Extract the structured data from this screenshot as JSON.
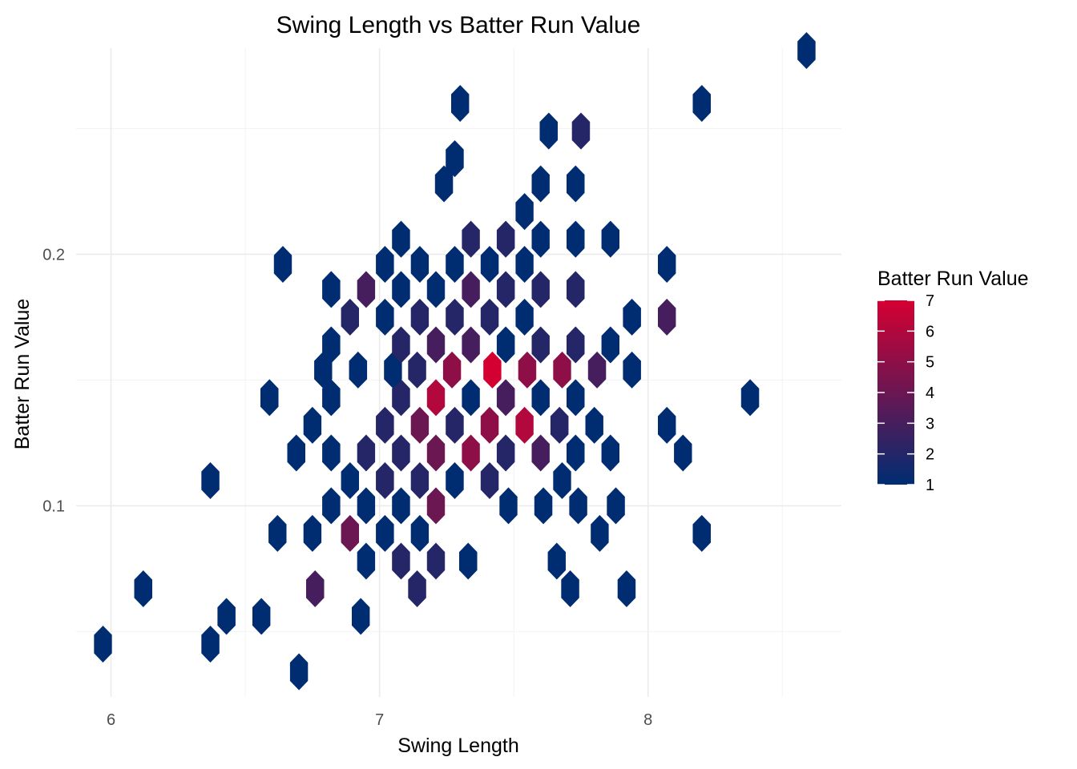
{
  "chart_data": {
    "type": "heatmap",
    "subtype": "hexbin",
    "title": "Swing Length vs Batter Run Value",
    "xlabel": "Swing Length",
    "ylabel": "Batter Run Value",
    "xlim": [
      5.87,
      8.72
    ],
    "ylim": [
      0.024,
      0.282
    ],
    "x_ticks": [
      6,
      7,
      8
    ],
    "x_tick_labels": [
      "6",
      "7",
      "8"
    ],
    "y_ticks": [
      0.1,
      0.2
    ],
    "y_tick_labels": [
      "0.1",
      "0.2"
    ],
    "grid": true,
    "hex_dx": 0.0652,
    "hex_dy": 0.0108,
    "bins": [
      [
        5.97,
        0.045,
        1
      ],
      [
        6.37,
        0.045,
        1
      ],
      [
        6.7,
        0.034,
        1
      ],
      [
        6.12,
        0.067,
        1
      ],
      [
        6.43,
        0.056,
        1
      ],
      [
        6.56,
        0.056,
        1
      ],
      [
        6.93,
        0.056,
        1
      ],
      [
        6.76,
        0.067,
        3
      ],
      [
        7.33,
        0.078,
        1
      ],
      [
        7.66,
        0.078,
        1
      ],
      [
        7.71,
        0.067,
        1
      ],
      [
        7.92,
        0.067,
        1
      ],
      [
        6.95,
        0.078,
        1
      ],
      [
        7.08,
        0.078,
        2
      ],
      [
        7.21,
        0.078,
        2
      ],
      [
        7.14,
        0.067,
        2
      ],
      [
        6.62,
        0.089,
        1
      ],
      [
        6.75,
        0.089,
        1
      ],
      [
        6.89,
        0.089,
        4
      ],
      [
        7.02,
        0.089,
        1
      ],
      [
        7.15,
        0.089,
        1
      ],
      [
        7.82,
        0.089,
        1
      ],
      [
        8.2,
        0.089,
        1
      ],
      [
        6.82,
        0.1,
        1
      ],
      [
        6.95,
        0.1,
        1
      ],
      [
        7.08,
        0.1,
        1
      ],
      [
        7.21,
        0.1,
        4
      ],
      [
        7.48,
        0.1,
        1
      ],
      [
        7.61,
        0.1,
        1
      ],
      [
        7.74,
        0.1,
        1
      ],
      [
        7.88,
        0.1,
        1
      ],
      [
        6.37,
        0.11,
        1
      ],
      [
        6.89,
        0.11,
        1
      ],
      [
        7.02,
        0.11,
        2
      ],
      [
        7.15,
        0.11,
        2
      ],
      [
        7.28,
        0.11,
        1
      ],
      [
        7.41,
        0.11,
        2
      ],
      [
        7.68,
        0.11,
        1
      ],
      [
        6.69,
        0.121,
        1
      ],
      [
        6.82,
        0.121,
        1
      ],
      [
        6.95,
        0.121,
        2
      ],
      [
        7.08,
        0.121,
        2
      ],
      [
        7.21,
        0.121,
        4
      ],
      [
        7.34,
        0.121,
        5
      ],
      [
        7.47,
        0.121,
        2
      ],
      [
        7.6,
        0.121,
        3
      ],
      [
        7.73,
        0.121,
        1
      ],
      [
        7.86,
        0.121,
        1
      ],
      [
        8.13,
        0.121,
        1
      ],
      [
        6.75,
        0.132,
        1
      ],
      [
        7.02,
        0.132,
        2
      ],
      [
        7.15,
        0.132,
        4
      ],
      [
        7.28,
        0.132,
        2
      ],
      [
        7.41,
        0.132,
        5
      ],
      [
        7.54,
        0.132,
        6
      ],
      [
        7.67,
        0.132,
        2
      ],
      [
        7.8,
        0.132,
        1
      ],
      [
        8.07,
        0.132,
        1
      ],
      [
        6.59,
        0.143,
        1
      ],
      [
        6.82,
        0.143,
        1
      ],
      [
        7.08,
        0.143,
        2
      ],
      [
        7.21,
        0.143,
        6
      ],
      [
        7.34,
        0.143,
        1
      ],
      [
        7.47,
        0.143,
        3
      ],
      [
        7.6,
        0.143,
        1
      ],
      [
        7.73,
        0.143,
        1
      ],
      [
        8.38,
        0.143,
        1
      ],
      [
        6.79,
        0.154,
        1
      ],
      [
        6.92,
        0.154,
        1
      ],
      [
        7.05,
        0.154,
        1
      ],
      [
        7.14,
        0.154,
        2
      ],
      [
        7.27,
        0.154,
        5
      ],
      [
        7.42,
        0.154,
        7
      ],
      [
        7.55,
        0.154,
        5
      ],
      [
        7.68,
        0.154,
        5
      ],
      [
        7.81,
        0.154,
        3
      ],
      [
        7.94,
        0.154,
        1
      ],
      [
        6.82,
        0.164,
        1
      ],
      [
        7.08,
        0.164,
        2
      ],
      [
        7.21,
        0.164,
        3
      ],
      [
        7.34,
        0.164,
        3
      ],
      [
        7.47,
        0.164,
        1
      ],
      [
        7.6,
        0.164,
        2
      ],
      [
        7.73,
        0.164,
        2
      ],
      [
        7.86,
        0.164,
        1
      ],
      [
        6.89,
        0.175,
        2
      ],
      [
        7.02,
        0.175,
        1
      ],
      [
        7.15,
        0.175,
        2
      ],
      [
        7.28,
        0.175,
        2
      ],
      [
        7.41,
        0.175,
        2
      ],
      [
        7.54,
        0.175,
        1
      ],
      [
        7.94,
        0.175,
        1
      ],
      [
        8.07,
        0.175,
        3
      ],
      [
        6.82,
        0.186,
        1
      ],
      [
        6.95,
        0.186,
        3
      ],
      [
        7.08,
        0.186,
        1
      ],
      [
        7.21,
        0.186,
        1
      ],
      [
        7.34,
        0.186,
        3
      ],
      [
        7.47,
        0.186,
        2
      ],
      [
        7.6,
        0.186,
        2
      ],
      [
        7.73,
        0.186,
        2
      ],
      [
        6.64,
        0.196,
        1
      ],
      [
        7.02,
        0.196,
        1
      ],
      [
        7.15,
        0.196,
        1
      ],
      [
        7.28,
        0.196,
        1
      ],
      [
        7.41,
        0.196,
        1
      ],
      [
        7.54,
        0.196,
        1
      ],
      [
        8.07,
        0.196,
        1
      ],
      [
        7.08,
        0.206,
        1
      ],
      [
        7.34,
        0.206,
        2
      ],
      [
        7.47,
        0.206,
        2
      ],
      [
        7.6,
        0.206,
        1
      ],
      [
        7.73,
        0.206,
        1
      ],
      [
        7.86,
        0.206,
        1
      ],
      [
        7.54,
        0.217,
        1
      ],
      [
        7.6,
        0.228,
        1
      ],
      [
        7.73,
        0.228,
        1
      ],
      [
        7.24,
        0.228,
        1
      ],
      [
        7.28,
        0.238,
        1
      ],
      [
        7.63,
        0.249,
        1
      ],
      [
        7.75,
        0.249,
        2
      ],
      [
        7.3,
        0.26,
        1
      ],
      [
        8.2,
        0.26,
        1
      ],
      [
        8.59,
        0.281,
        1
      ]
    ]
  },
  "legend": {
    "title": "Batter Run Value",
    "min": 1,
    "max": 7,
    "labels": [
      "1",
      "2",
      "3",
      "4",
      "5",
      "6",
      "7"
    ],
    "low_color": "#002D72",
    "high_color": "#D50032"
  }
}
